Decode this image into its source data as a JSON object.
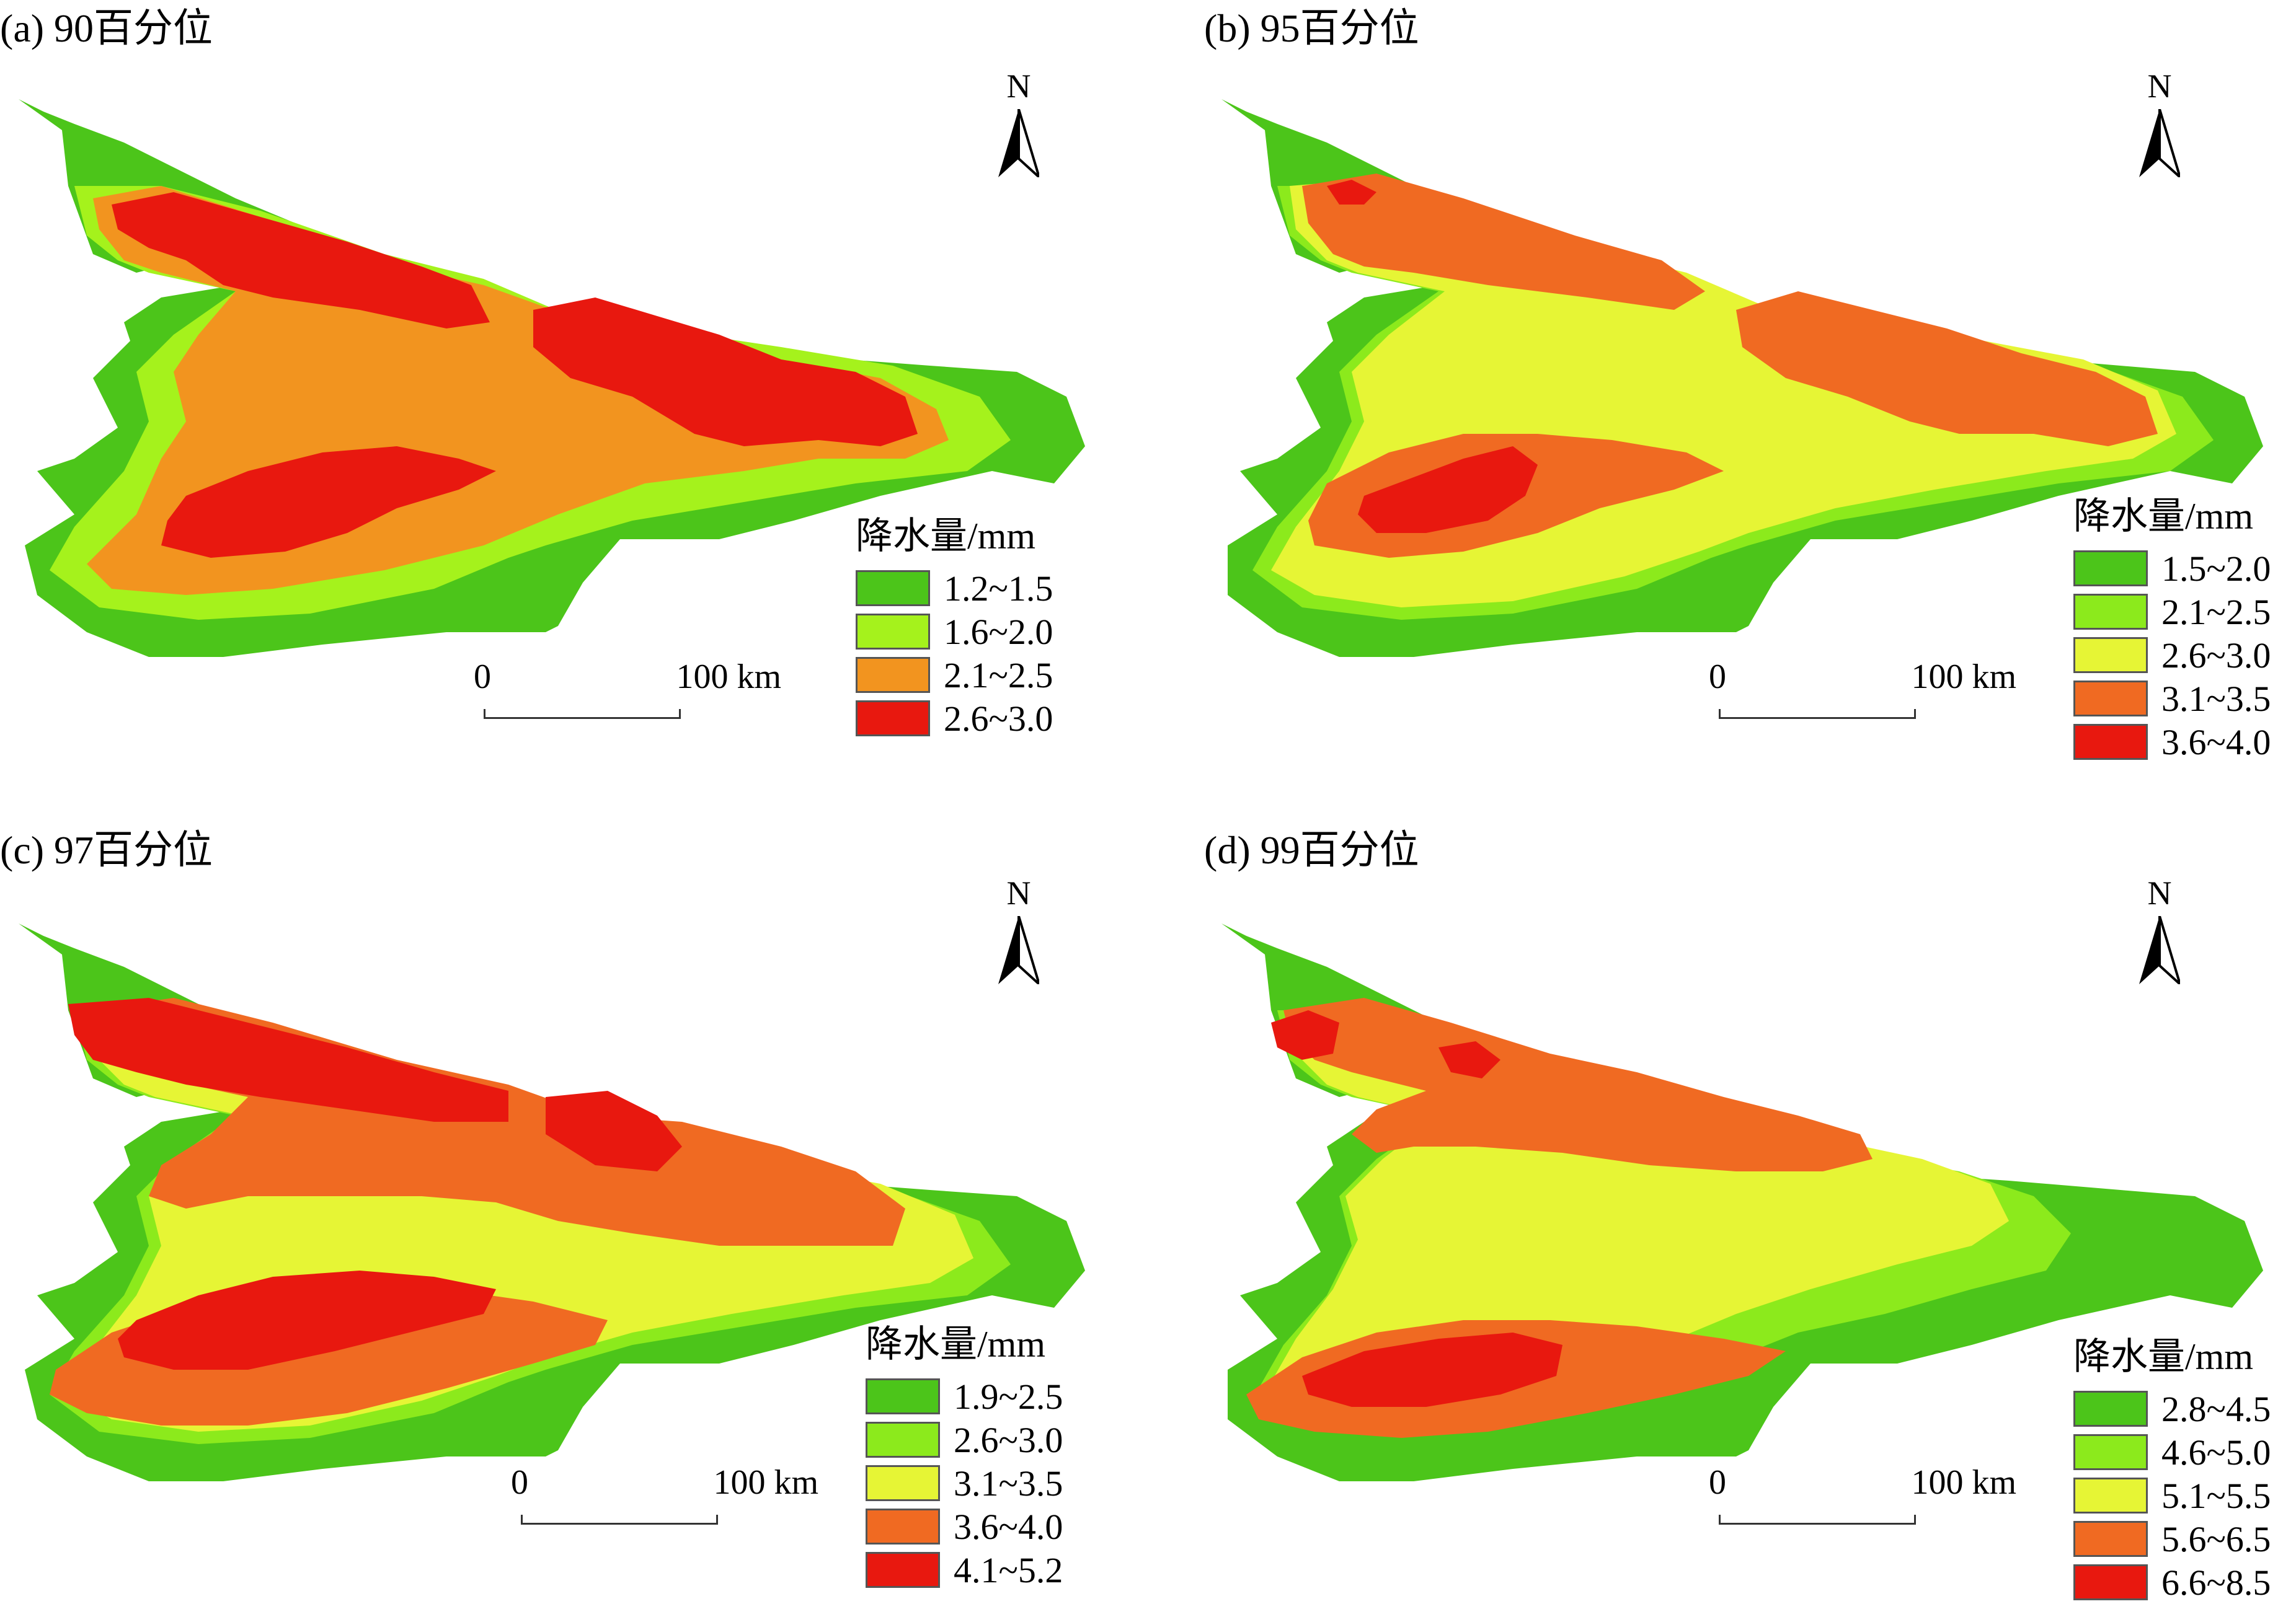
{
  "panels": [
    {
      "id": "a",
      "title": "(a) 90百分位",
      "legend": {
        "title": "降水量/mm",
        "items": [
          {
            "label": "1.2~1.5",
            "color": "#4cc51a"
          },
          {
            "label": "1.6~2.0",
            "color": "#a5f21c"
          },
          {
            "label": "2.1~2.5",
            "color": "#f2941f"
          },
          {
            "label": "2.6~3.0",
            "color": "#e8180f"
          }
        ]
      },
      "scalebar": {
        "start": "0",
        "end": "100 km"
      },
      "north": "N"
    },
    {
      "id": "b",
      "title": "(b) 95百分位",
      "legend": {
        "title": "降水量/mm",
        "items": [
          {
            "label": "1.5~2.0",
            "color": "#4cc51a"
          },
          {
            "label": "2.1~2.5",
            "color": "#8cea1c"
          },
          {
            "label": "2.6~3.0",
            "color": "#e6f535"
          },
          {
            "label": "3.1~3.5",
            "color": "#f06a22"
          },
          {
            "label": "3.6~4.0",
            "color": "#e8180f"
          }
        ]
      },
      "scalebar": {
        "start": "0",
        "end": "100 km"
      },
      "north": "N"
    },
    {
      "id": "c",
      "title": "(c) 97百分位",
      "legend": {
        "title": "降水量/mm",
        "items": [
          {
            "label": "1.9~2.5",
            "color": "#4cc51a"
          },
          {
            "label": "2.6~3.0",
            "color": "#8cea1c"
          },
          {
            "label": "3.1~3.5",
            "color": "#e6f535"
          },
          {
            "label": "3.6~4.0",
            "color": "#f06a22"
          },
          {
            "label": "4.1~5.2",
            "color": "#e8180f"
          }
        ]
      },
      "scalebar": {
        "start": "0",
        "end": "100 km"
      },
      "north": "N"
    },
    {
      "id": "d",
      "title": "(d) 99百分位",
      "legend": {
        "title": "降水量/mm",
        "items": [
          {
            "label": "2.8~4.5",
            "color": "#4cc51a"
          },
          {
            "label": "4.6~5.0",
            "color": "#8cea1c"
          },
          {
            "label": "5.1~5.5",
            "color": "#e6f535"
          },
          {
            "label": "5.6~6.5",
            "color": "#f06a22"
          },
          {
            "label": "6.6~8.5",
            "color": "#e8180f"
          }
        ]
      },
      "scalebar": {
        "start": "0",
        "end": "100 km"
      },
      "north": "N"
    }
  ]
}
